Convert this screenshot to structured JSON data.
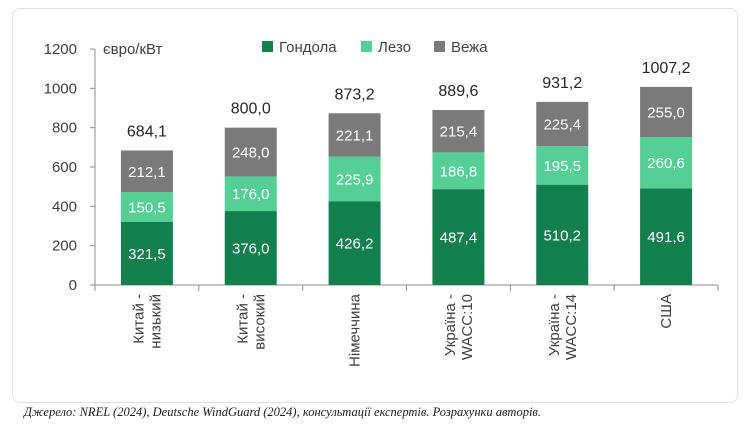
{
  "chart_data": {
    "type": "bar",
    "stacked": true,
    "ylabel": "євро/кВт",
    "ylim": [
      0,
      1200
    ],
    "yticks": [
      0,
      200,
      400,
      600,
      800,
      1000,
      1200
    ],
    "grid": false,
    "legend_position": "top",
    "categories": [
      [
        "Китай -",
        "низький"
      ],
      [
        "Китай -",
        "високий"
      ],
      [
        "Німеччина"
      ],
      [
        "Україна -",
        "WACC:10"
      ],
      [
        "Україна -",
        "WACC:14"
      ],
      [
        "США"
      ]
    ],
    "series": [
      {
        "name": "Гондола",
        "color": "#137f4f",
        "values": [
          321.5,
          376.0,
          426.2,
          487.4,
          510.2,
          491.6
        ],
        "labels": [
          "321,5",
          "376,0",
          "426,2",
          "487,4",
          "510,2",
          "491,6"
        ]
      },
      {
        "name": "Лезо",
        "color": "#56cf96",
        "values": [
          150.5,
          176.0,
          225.9,
          186.8,
          195.5,
          260.6
        ],
        "labels": [
          "150,5",
          "176,0",
          "225,9",
          "186,8",
          "195,5",
          "260,6"
        ]
      },
      {
        "name": "Вежа",
        "color": "#7a7a7a",
        "values": [
          212.1,
          248.0,
          221.1,
          215.4,
          225.4,
          255.0
        ],
        "labels": [
          "212,1",
          "248,0",
          "221,1",
          "215,4",
          "225,4",
          "255,0"
        ]
      }
    ],
    "totals": [
      "684,1",
      "800,0",
      "873,2",
      "889,6",
      "931,2",
      "1007,2"
    ]
  },
  "source_note": "Джерело: NREL (2024), Deutsche WindGuard (2024), консультації експертів. Розрахунки авторів."
}
